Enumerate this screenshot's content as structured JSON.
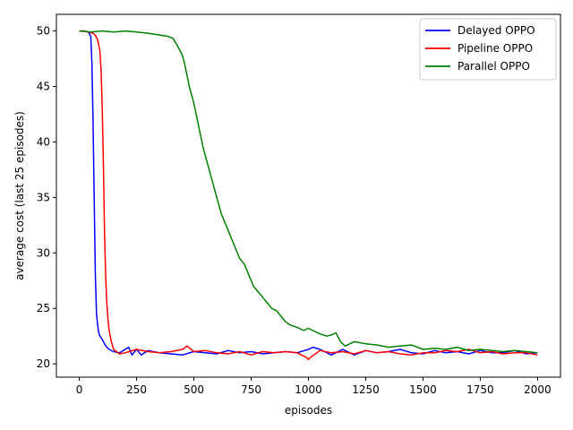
{
  "chart_data": {
    "type": "line",
    "xlabel": "episodes",
    "ylabel": "average cost (last 25 episodes)",
    "xlim": [
      -100,
      2100
    ],
    "ylim": [
      18.8,
      51.5
    ],
    "xticks": [
      0,
      250,
      500,
      750,
      1000,
      1250,
      1500,
      1750,
      2000
    ],
    "yticks": [
      20,
      25,
      30,
      35,
      40,
      45,
      50
    ],
    "grid": false,
    "legend": "top-right",
    "series": [
      {
        "name": "Delayed OPPO",
        "color": "#0000ff",
        "x": [
          0,
          20,
          40,
          50,
          55,
          60,
          65,
          70,
          75,
          80,
          85,
          90,
          100,
          110,
          120,
          130,
          150,
          175,
          200,
          215,
          230,
          250,
          270,
          300,
          350,
          400,
          450,
          500,
          550,
          600,
          650,
          700,
          750,
          800,
          850,
          900,
          950,
          1000,
          1020,
          1050,
          1100,
          1150,
          1200,
          1250,
          1300,
          1350,
          1400,
          1450,
          1500,
          1550,
          1600,
          1650,
          1700,
          1750,
          1800,
          1850,
          1900,
          1950,
          2000
        ],
        "y": [
          50,
          50,
          49.9,
          49.5,
          47,
          42,
          35,
          28,
          24.5,
          23.5,
          22.8,
          22.5,
          22.2,
          21.8,
          21.5,
          21.3,
          21.1,
          21.0,
          21.3,
          21.5,
          20.8,
          21.3,
          20.8,
          21.2,
          21.0,
          20.9,
          20.8,
          21.1,
          21.0,
          20.9,
          21.2,
          21.0,
          21.1,
          20.9,
          21.0,
          21.1,
          21.0,
          21.3,
          21.5,
          21.3,
          20.8,
          21.3,
          20.8,
          21.2,
          21.0,
          21.1,
          21.3,
          21.0,
          20.9,
          21.2,
          21.0,
          21.1,
          20.9,
          21.2,
          21.0,
          21.0,
          21.2,
          20.9,
          21.0
        ]
      },
      {
        "name": "Pipeline OPPO",
        "color": "#ff0000",
        "x": [
          0,
          20,
          40,
          60,
          70,
          80,
          90,
          95,
          100,
          105,
          110,
          115,
          120,
          125,
          130,
          140,
          150,
          175,
          200,
          250,
          300,
          350,
          400,
          450,
          470,
          500,
          550,
          600,
          650,
          700,
          750,
          800,
          850,
          900,
          950,
          990,
          1000,
          1010,
          1050,
          1100,
          1150,
          1200,
          1250,
          1300,
          1350,
          1400,
          1450,
          1500,
          1550,
          1600,
          1650,
          1700,
          1750,
          1800,
          1850,
          1900,
          1950,
          2000
        ],
        "y": [
          50,
          50,
          49.9,
          49.8,
          49.6,
          49.2,
          48.2,
          46.5,
          43,
          38,
          32,
          28,
          25.5,
          24,
          23,
          22,
          21.3,
          20.9,
          21.0,
          21.3,
          21.1,
          21.0,
          21.1,
          21.3,
          21.6,
          21.1,
          21.2,
          21.0,
          20.9,
          21.1,
          20.8,
          21.1,
          21.0,
          21.1,
          21.0,
          20.6,
          20.4,
          20.6,
          21.2,
          21.0,
          21.1,
          20.9,
          21.2,
          21.0,
          21.1,
          20.9,
          20.8,
          21.0,
          21.0,
          21.2,
          21.1,
          21.3,
          21.0,
          21.1,
          20.9,
          21.0,
          21.0,
          20.8
        ]
      },
      {
        "name": "Parallel OPPO",
        "color": "#008000",
        "x": [
          0,
          50,
          100,
          150,
          200,
          250,
          300,
          330,
          360,
          390,
          410,
          430,
          450,
          460,
          470,
          480,
          500,
          520,
          540,
          560,
          580,
          600,
          620,
          640,
          660,
          680,
          700,
          720,
          740,
          760,
          780,
          800,
          820,
          840,
          860,
          880,
          900,
          920,
          950,
          980,
          1000,
          1020,
          1050,
          1080,
          1100,
          1120,
          1140,
          1160,
          1200,
          1250,
          1300,
          1350,
          1400,
          1450,
          1500,
          1550,
          1600,
          1650,
          1700,
          1750,
          1800,
          1850,
          1900,
          1950,
          2000
        ],
        "y": [
          50,
          49.9,
          50,
          49.9,
          50,
          49.9,
          49.8,
          49.7,
          49.6,
          49.5,
          49.3,
          48.6,
          47.8,
          47.0,
          46.0,
          45.0,
          43.5,
          41.5,
          39.5,
          38.0,
          36.5,
          35.0,
          33.5,
          32.5,
          31.5,
          30.5,
          29.5,
          29.0,
          28.0,
          27.0,
          26.5,
          26.0,
          25.5,
          25.0,
          24.8,
          24.3,
          23.8,
          23.5,
          23.3,
          23.0,
          23.2,
          23.0,
          22.7,
          22.5,
          22.6,
          22.8,
          22.0,
          21.6,
          22.0,
          21.8,
          21.7,
          21.5,
          21.6,
          21.7,
          21.3,
          21.4,
          21.3,
          21.5,
          21.2,
          21.3,
          21.2,
          21.1,
          21.2,
          21.1,
          21.0
        ]
      }
    ]
  }
}
